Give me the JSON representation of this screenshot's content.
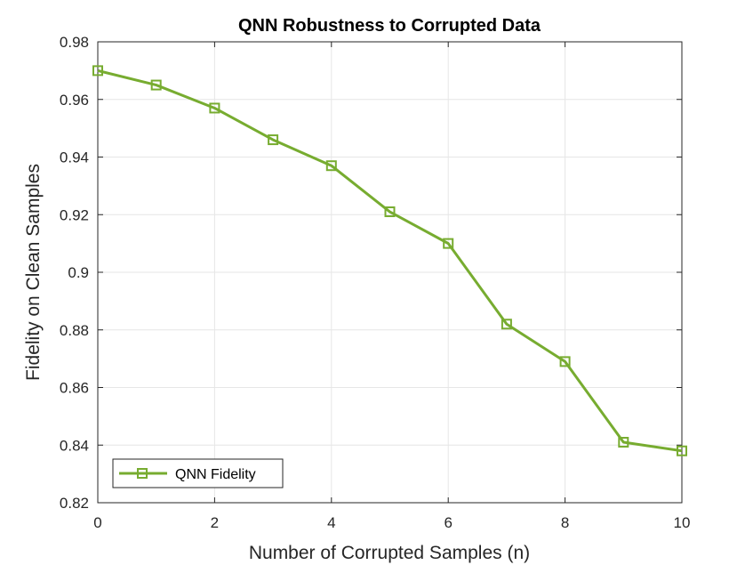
{
  "chart_data": {
    "type": "line",
    "title": "QNN Robustness to Corrupted Data",
    "xlabel": "Number of Corrupted Samples (n)",
    "ylabel": "Fidelity on Clean Samples",
    "xlim": [
      0,
      10
    ],
    "ylim": [
      0.82,
      0.98
    ],
    "xticks": [
      0,
      2,
      4,
      6,
      8,
      10
    ],
    "xtick_labels": [
      "0",
      "2",
      "4",
      "6",
      "8",
      "10"
    ],
    "yticks": [
      0.82,
      0.84,
      0.86,
      0.88,
      0.9,
      0.92,
      0.94,
      0.96,
      0.98
    ],
    "ytick_labels": [
      "0.82",
      "0.84",
      "0.86",
      "0.88",
      "0.9",
      "0.92",
      "0.94",
      "0.96",
      "0.98"
    ],
    "grid": true,
    "legend_position": "bottom-left",
    "series": [
      {
        "name": "QNN Fidelity",
        "color": "#77AC30",
        "marker": "square",
        "x": [
          0,
          1,
          2,
          3,
          4,
          5,
          6,
          7,
          8,
          9,
          10
        ],
        "y": [
          0.97,
          0.965,
          0.957,
          0.946,
          0.937,
          0.921,
          0.91,
          0.882,
          0.869,
          0.841,
          0.838
        ]
      }
    ]
  }
}
